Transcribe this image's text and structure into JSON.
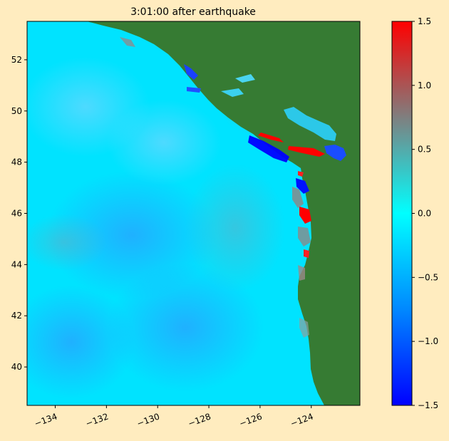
{
  "title": "3:01:00 after earthquake",
  "map": {
    "lon_range": [
      -135.1,
      -122.1
    ],
    "lat_range": [
      38.5,
      53.5
    ],
    "lon_ticks": [
      -134,
      -132,
      -130,
      -128,
      -126,
      -124
    ],
    "lon_tick_labels": [
      "−134",
      "−132",
      "−130",
      "−128",
      "−126",
      "−124"
    ],
    "lat_ticks": [
      40,
      42,
      44,
      46,
      48,
      50,
      52
    ],
    "lat_tick_labels": [
      "40",
      "42",
      "44",
      "46",
      "48",
      "50",
      "52"
    ],
    "land_color": "#367b33",
    "water_color": "#00e6ff"
  },
  "colorbar": {
    "range": [
      -1.5,
      1.5
    ],
    "ticks": [
      -1.5,
      -1.0,
      -0.5,
      0.0,
      0.5,
      1.0,
      1.5
    ],
    "tick_labels": [
      "−1.5",
      "−1.0",
      "−0.5",
      "0.0",
      "0.5",
      "1.0",
      "1.5"
    ],
    "colors": [
      "#0000ff",
      "#0088ff",
      "#00ffff",
      "#7f7f7f",
      "#ff0000"
    ]
  }
}
